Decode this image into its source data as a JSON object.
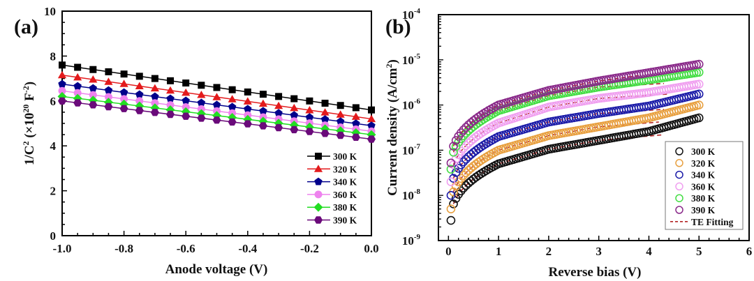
{
  "chart_data": [
    {
      "panel": "(a)",
      "type": "line",
      "title": "",
      "xlabel": "Anode voltage (V)",
      "ylabel_main": "1/C",
      "ylabel_sup1": "2",
      "ylabel_mid": " (×10",
      "ylabel_sup2": "20",
      "ylabel_mid2": " F",
      "ylabel_sup3": "-2",
      "ylabel_end": ")",
      "xlim": [
        -1.0,
        0.0
      ],
      "ylim": [
        0,
        10
      ],
      "xticks": [
        "-1.0",
        "-0.8",
        "-0.6",
        "-0.4",
        "-0.2",
        "0.0"
      ],
      "xtick_values": [
        -1.0,
        -0.8,
        -0.6,
        -0.4,
        -0.2,
        0.0
      ],
      "yticks": [
        "0",
        "2",
        "4",
        "6",
        "8",
        "10"
      ],
      "ytick_values": [
        0,
        2,
        4,
        6,
        8,
        10
      ],
      "x": [
        -1.0,
        -0.95,
        -0.9,
        -0.85,
        -0.8,
        -0.75,
        -0.7,
        -0.65,
        -0.6,
        -0.55,
        -0.5,
        -0.45,
        -0.4,
        -0.35,
        -0.3,
        -0.25,
        -0.2,
        -0.15,
        -0.1,
        -0.05,
        0.0
      ],
      "legend_position": "bottom-right",
      "grid": false,
      "series": [
        {
          "name": "300 K",
          "color": "#000000",
          "marker": "square",
          "start": 7.6,
          "end": 5.6
        },
        {
          "name": "320 K",
          "color": "#e31a1c",
          "marker": "triangle",
          "start": 7.15,
          "end": 5.2
        },
        {
          "name": "340 K",
          "color": "#00008b",
          "marker": "pentagon",
          "start": 6.75,
          "end": 4.9
        },
        {
          "name": "360 K",
          "color": "#ee82ee",
          "marker": "circle",
          "start": 6.45,
          "end": 4.65
        },
        {
          "name": "380 K",
          "color": "#22dd22",
          "marker": "diamond",
          "start": 6.2,
          "end": 4.5
        },
        {
          "name": "390 K",
          "color": "#6a0a7a",
          "marker": "hexagon",
          "start": 6.0,
          "end": 4.3
        }
      ]
    },
    {
      "panel": "(b)",
      "type": "scatter",
      "title": "",
      "xlabel": "Reverse bias (V)",
      "ylabel": "Current density (A/cm",
      "ylabel_sup": "2",
      "ylabel_end": ")",
      "yscale": "log",
      "xlim": [
        -0.2,
        6
      ],
      "ylim": [
        1e-09,
        0.0001
      ],
      "xticks": [
        "0",
        "1",
        "2",
        "3",
        "4",
        "5",
        "6"
      ],
      "xtick_values": [
        0,
        1,
        2,
        3,
        4,
        5,
        6
      ],
      "ytick_exponents": [
        "-9",
        "-8",
        "-7",
        "-6",
        "-5",
        "-4"
      ],
      "ytick_base": "10",
      "legend_position": "bottom-right",
      "grid": false,
      "fit_label": "TE Fitting",
      "fit_color": "#b22222",
      "series": [
        {
          "name": "300 K",
          "color": "#111111",
          "j_at_0_05V": 2.8e-09,
          "j_at_1V": 5e-08,
          "j_at_2V": 1.05e-07,
          "j_at_3V": 1.65e-07,
          "j_at_4V": 2.6e-07,
          "j_at_5V": 5.2e-07,
          "fit_end_V": 4.3,
          "fit_end_j": 2.2e-07
        },
        {
          "name": "320 K",
          "color": "#e8a040",
          "j_at_0_05V": 5e-09,
          "j_at_1V": 1e-07,
          "j_at_2V": 2.1e-07,
          "j_at_3V": 3.3e-07,
          "j_at_4V": 5.2e-07,
          "j_at_5V": 1e-06,
          "fit_end_V": 4.2,
          "fit_end_j": 4.2e-07
        },
        {
          "name": "340 K",
          "color": "#1c1ca8",
          "j_at_0_05V": 1e-08,
          "j_at_1V": 2e-07,
          "j_at_2V": 4.2e-07,
          "j_at_3V": 6.5e-07,
          "j_at_4V": 9.5e-07,
          "j_at_5V": 1.75e-06,
          "fit_end_V": 4.3,
          "fit_end_j": 8e-07
        },
        {
          "name": "360 K",
          "color": "#f0a0f0",
          "j_at_0_05V": 2e-08,
          "j_at_1V": 4e-07,
          "j_at_2V": 9e-07,
          "j_at_3V": 1.4e-06,
          "j_at_4V": 1.9e-06,
          "j_at_5V": 2.9e-06,
          "fit_end_V": 4.4,
          "fit_end_j": 1.75e-06
        },
        {
          "name": "380 K",
          "color": "#44dd44",
          "j_at_0_05V": 3.8e-08,
          "j_at_1V": 7.5e-07,
          "j_at_2V": 1.6e-06,
          "j_at_3V": 2.5e-06,
          "j_at_4V": 3.6e-06,
          "j_at_5V": 5.3e-06,
          "fit_end_V": 4.3,
          "fit_end_j": 3e-06
        },
        {
          "name": "390 K",
          "color": "#8a2a8a",
          "j_at_0_05V": 5.2e-08,
          "j_at_1V": 1e-06,
          "j_at_2V": 2.1e-06,
          "j_at_3V": 3.4e-06,
          "j_at_4V": 5.2e-06,
          "j_at_5V": 8e-06,
          "fit_end_V": 3.8,
          "fit_end_j": 4.5e-06
        }
      ]
    }
  ]
}
